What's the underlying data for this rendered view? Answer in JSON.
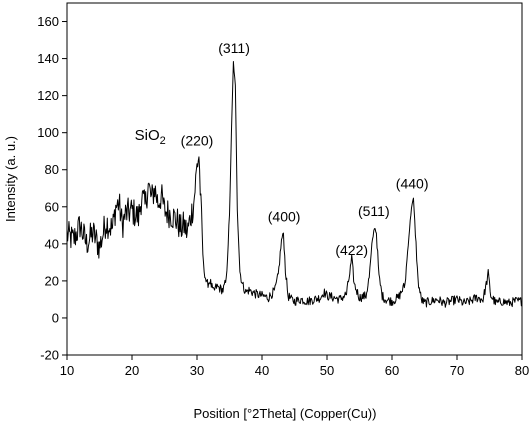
{
  "chart_data": {
    "type": "line",
    "xlabel": "Position [°2Theta] (Copper(Cu))",
    "ylabel": "Intensity (a. u.)",
    "xlim": [
      10,
      80
    ],
    "ylim": [
      -20,
      170
    ],
    "x_ticks": [
      10,
      20,
      30,
      40,
      50,
      60,
      70,
      80
    ],
    "y_ticks": [
      -20,
      0,
      20,
      40,
      60,
      80,
      100,
      120,
      140,
      160
    ],
    "grid": false,
    "line_color": "#000000",
    "annotations": [
      {
        "text": "SiO",
        "subscript": "2",
        "x": 22.8,
        "y": 96
      },
      {
        "text": "(220)",
        "x": 30.0,
        "y": 93
      },
      {
        "text": "(311)",
        "x": 35.7,
        "y": 143
      },
      {
        "text": "(400)",
        "x": 43.4,
        "y": 52
      },
      {
        "text": "(422)",
        "x": 53.8,
        "y": 34
      },
      {
        "text": "(511)",
        "x": 57.2,
        "y": 55
      },
      {
        "text": "(440)",
        "x": 63.1,
        "y": 70
      }
    ],
    "series": [
      {
        "x": [
          10,
          11,
          12,
          13,
          14,
          15,
          16,
          17,
          17.5,
          18,
          18.5,
          19,
          20,
          21,
          21.5,
          22,
          22.5,
          23,
          23.5,
          24,
          24.5,
          25,
          26,
          27,
          27.5,
          28,
          28.5,
          29,
          29.5,
          30,
          30.3,
          30.6,
          31,
          31.5,
          32,
          32.5,
          33,
          33.5,
          34,
          34.5,
          35,
          35.3,
          35.6,
          35.9,
          36.2,
          36.6,
          37,
          37.5,
          38,
          39,
          40,
          41,
          42,
          42.5,
          43,
          43.3,
          43.6,
          44,
          44.5,
          45,
          46,
          47,
          48,
          49,
          49.5,
          50,
          51,
          52,
          53,
          53.5,
          53.8,
          54.2,
          55,
          56,
          56.5,
          57,
          57.3,
          57.6,
          58,
          58.5,
          59,
          60,
          61,
          62,
          62.5,
          63,
          63.3,
          63.6,
          64,
          64.5,
          65,
          66,
          67,
          68,
          69,
          70,
          71,
          72,
          73,
          74,
          74.5,
          74.8,
          75.2,
          76,
          77,
          78,
          79,
          80
        ],
        "y": [
          45,
          42,
          50,
          40,
          46,
          38,
          52,
          48,
          60,
          62,
          50,
          56,
          58,
          54,
          66,
          60,
          72,
          64,
          70,
          62,
          66,
          58,
          56,
          52,
          48,
          50,
          46,
          54,
          62,
          82,
          88,
          60,
          28,
          18,
          20,
          14,
          17,
          16,
          15,
          20,
          55,
          100,
          138,
          125,
          60,
          25,
          18,
          14,
          15,
          13,
          12,
          11,
          15,
          23,
          42,
          46,
          26,
          12,
          10,
          9,
          10,
          9,
          10,
          11,
          14,
          12,
          11,
          10,
          13,
          24,
          32,
          18,
          11,
          12,
          22,
          42,
          49,
          46,
          22,
          12,
          10,
          9,
          11,
          18,
          40,
          60,
          64,
          46,
          20,
          10,
          8,
          9,
          10,
          8,
          9,
          10,
          8,
          9,
          11,
          10,
          18,
          24,
          12,
          8,
          9,
          8,
          9,
          9
        ]
      }
    ]
  }
}
